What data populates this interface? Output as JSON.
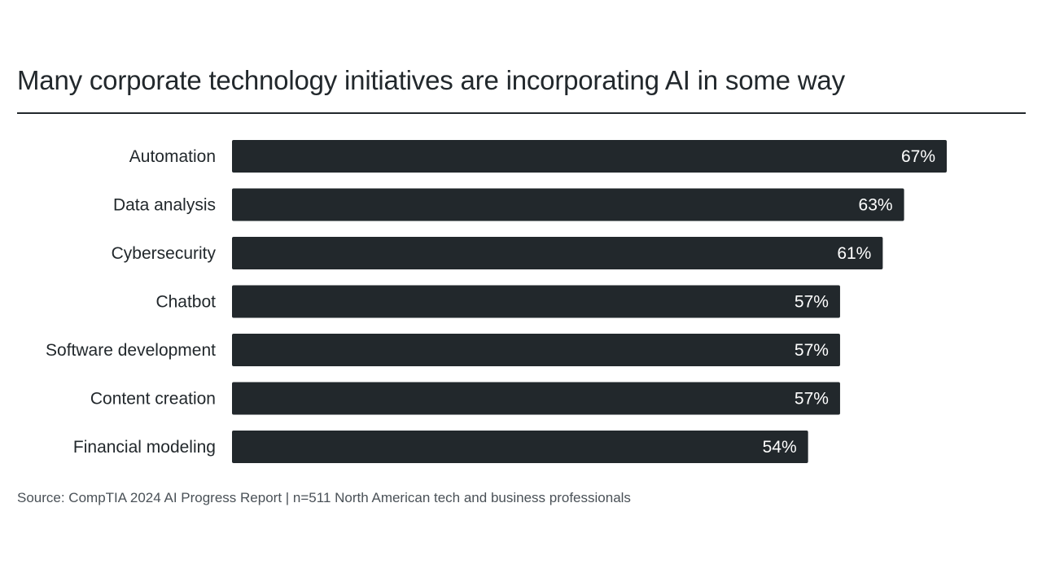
{
  "page": {
    "title": "Many corporate technology initiatives are incorporating AI in some way",
    "source": "Source: CompTIA 2024 AI Progress Report | n=511 North American tech and business professionals"
  },
  "colors": {
    "bar": "#22282c",
    "value_label": "#ffffff",
    "text": "#22282c",
    "source_text": "#4a5157",
    "background": "#ffffff"
  },
  "chart_data": {
    "type": "bar",
    "orientation": "horizontal",
    "title": "Many corporate technology initiatives are incorporating AI in some way",
    "categories": [
      "Automation",
      "Data analysis",
      "Cybersecurity",
      "Chatbot",
      "Software development",
      "Content creation",
      "Financial modeling"
    ],
    "values": [
      67,
      63,
      61,
      57,
      57,
      57,
      54
    ],
    "value_labels": [
      "67%",
      "63%",
      "61%",
      "57%",
      "57%",
      "57%",
      "54%"
    ],
    "unit": "%",
    "grid": false,
    "legend": "none"
  }
}
